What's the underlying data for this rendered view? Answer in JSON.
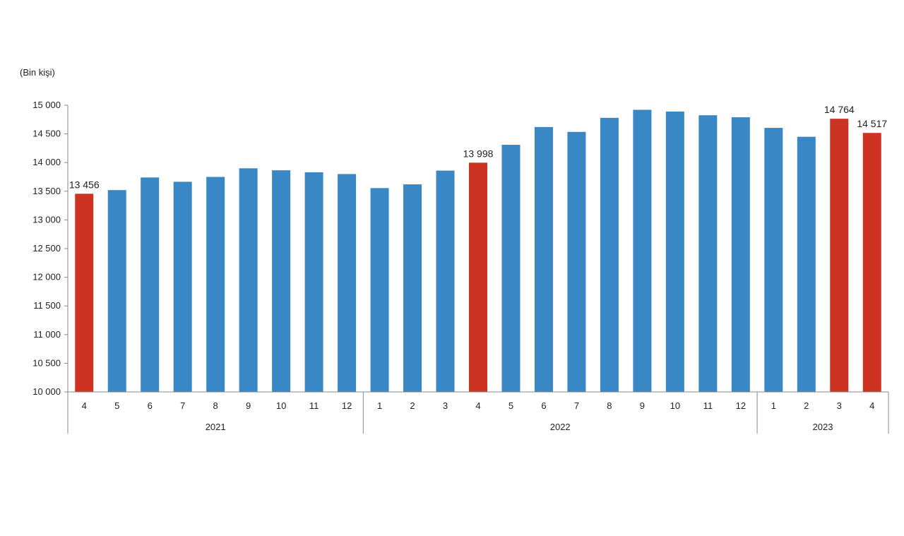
{
  "chart_data": {
    "type": "bar",
    "unit_label": "(Bin kişi)",
    "title": "",
    "xlabel": "",
    "ylabel": "",
    "ylim": [
      10000,
      15000
    ],
    "yticks": [
      10000,
      10500,
      11000,
      11500,
      12000,
      12500,
      13000,
      13500,
      14000,
      14500,
      15000
    ],
    "ytick_labels": [
      "10 000",
      "10 500",
      "11 000",
      "11 500",
      "12 000",
      "12 500",
      "13 000",
      "13 500",
      "14 000",
      "14 500",
      "15 000"
    ],
    "grid": false,
    "legend": "none",
    "colors": {
      "default": "#3a87c6",
      "highlight": "#cc3322"
    },
    "categories": [
      "4",
      "5",
      "6",
      "7",
      "8",
      "9",
      "10",
      "11",
      "12",
      "1",
      "2",
      "3",
      "4",
      "5",
      "6",
      "7",
      "8",
      "9",
      "10",
      "11",
      "12",
      "1",
      "2",
      "3",
      "4"
    ],
    "years": [
      {
        "label": "2021",
        "count": 9
      },
      {
        "label": "2022",
        "count": 12
      },
      {
        "label": "2023",
        "count": 4
      }
    ],
    "values": [
      13456,
      13520,
      13740,
      13665,
      13750,
      13900,
      13865,
      13830,
      13800,
      13555,
      13620,
      13860,
      13998,
      14310,
      14620,
      14535,
      14780,
      14920,
      14890,
      14825,
      14790,
      14605,
      14450,
      14764,
      14517
    ],
    "highlighted": [
      0,
      12,
      23,
      24
    ],
    "data_labels": [
      {
        "index": 0,
        "text": "13 456"
      },
      {
        "index": 12,
        "text": "13 998"
      },
      {
        "index": 23,
        "text": "14 764"
      },
      {
        "index": 24,
        "text": "14 517"
      }
    ]
  }
}
